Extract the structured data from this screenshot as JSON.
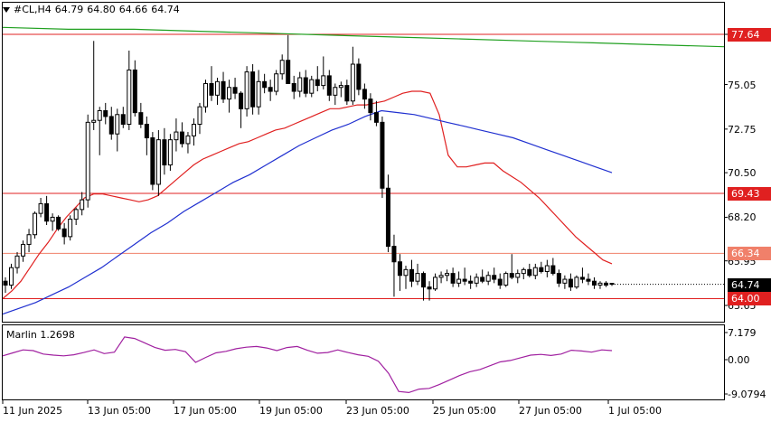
{
  "header": {
    "symbol": "#CL,H4",
    "open": "64.79",
    "high": "64.80",
    "low": "64.66",
    "close": "64.74"
  },
  "indicator": {
    "label": "Marlin 1.2698",
    "levels": [
      "7.179",
      "0.00",
      "-9.0794"
    ],
    "color": "#a020a0"
  },
  "colors": {
    "bull_candle": "#ffffff",
    "bear_candle": "#000000",
    "level_line": "#e02020",
    "ma_red": "#e02020",
    "ma_blue": "#2030d0",
    "ma_green": "#20a020",
    "oscillator": "#a020a0"
  },
  "chart_data": {
    "type": "candlestick",
    "timeframe": "H4",
    "price_axis": {
      "labels": [
        "77.64",
        "75.05",
        "72.75",
        "70.50",
        "68.20",
        "65.95",
        "63.65"
      ],
      "values": [
        77.64,
        75.05,
        72.75,
        70.5,
        68.2,
        65.95,
        63.65
      ]
    },
    "time_axis": [
      "11 Jun 2025",
      "13 Jun 05:00",
      "17 Jun 05:00",
      "19 Jun 05:00",
      "23 Jun 05:00",
      "25 Jun 05:00",
      "27 Jun 05:00",
      "1 Jul 05:00"
    ],
    "levels": [
      {
        "label": "77.64",
        "value": 77.64,
        "color": "#e02020",
        "text_color": "#ffffff"
      },
      {
        "label": "69.43",
        "value": 69.43,
        "color": "#e02020",
        "text_color": "#ffffff"
      },
      {
        "label": "66.34",
        "value": 66.34,
        "color": "#f0806a",
        "text_color": "#ffffff"
      },
      {
        "label": "64.00",
        "value": 64.0,
        "color": "#e02020",
        "text_color": "#ffffff"
      }
    ],
    "current_price": {
      "label": "64.74",
      "value": 64.74
    },
    "candles_ohlc": [
      [
        64.9,
        65.1,
        64.3,
        64.7
      ],
      [
        64.7,
        65.8,
        64.5,
        65.6
      ],
      [
        65.6,
        66.4,
        65.3,
        66.2
      ],
      [
        66.2,
        67.0,
        65.9,
        66.8
      ],
      [
        66.8,
        67.6,
        66.4,
        67.3
      ],
      [
        67.3,
        68.5,
        67.1,
        68.4
      ],
      [
        68.4,
        69.2,
        68.2,
        68.9
      ],
      [
        68.9,
        69.3,
        67.8,
        68.0
      ],
      [
        68.0,
        68.4,
        67.5,
        68.2
      ],
      [
        68.2,
        68.3,
        67.5,
        67.6
      ],
      [
        67.6,
        67.9,
        66.8,
        67.2
      ],
      [
        67.2,
        68.3,
        67.0,
        68.1
      ],
      [
        68.1,
        68.7,
        67.8,
        68.6
      ],
      [
        68.6,
        69.5,
        68.3,
        69.1
      ],
      [
        69.1,
        73.5,
        68.7,
        73.1
      ],
      [
        73.1,
        77.3,
        72.7,
        73.2
      ],
      [
        73.2,
        73.9,
        71.4,
        73.7
      ],
      [
        73.7,
        74.1,
        73.0,
        73.4
      ],
      [
        73.4,
        73.9,
        72.2,
        72.5
      ],
      [
        72.5,
        73.8,
        71.6,
        73.5
      ],
      [
        73.5,
        73.9,
        72.8,
        73.0
      ],
      [
        73.0,
        76.8,
        72.7,
        75.8
      ],
      [
        75.8,
        76.3,
        73.4,
        73.6
      ],
      [
        73.6,
        74.1,
        72.8,
        73.0
      ],
      [
        73.0,
        73.4,
        71.4,
        72.3
      ],
      [
        72.3,
        72.6,
        69.6,
        69.9
      ],
      [
        69.9,
        72.7,
        69.3,
        72.2
      ],
      [
        72.2,
        72.8,
        70.4,
        70.9
      ],
      [
        70.9,
        72.5,
        70.6,
        72.2
      ],
      [
        72.2,
        73.3,
        71.6,
        72.6
      ],
      [
        72.6,
        73.1,
        71.8,
        72.0
      ],
      [
        72.0,
        72.6,
        71.5,
        72.4
      ],
      [
        72.4,
        73.3,
        71.9,
        73.0
      ],
      [
        73.0,
        74.1,
        72.5,
        73.9
      ],
      [
        73.9,
        75.3,
        73.6,
        75.1
      ],
      [
        75.1,
        76.0,
        74.2,
        74.5
      ],
      [
        74.5,
        75.4,
        74.0,
        75.2
      ],
      [
        75.2,
        75.7,
        74.1,
        74.3
      ],
      [
        74.3,
        75.3,
        73.6,
        74.9
      ],
      [
        74.9,
        75.4,
        74.3,
        74.6
      ],
      [
        74.6,
        74.7,
        72.8,
        73.8
      ],
      [
        73.8,
        76.0,
        73.4,
        75.7
      ],
      [
        75.7,
        76.1,
        73.5,
        73.9
      ],
      [
        73.9,
        75.8,
        73.5,
        75.2
      ],
      [
        75.2,
        75.6,
        74.6,
        74.9
      ],
      [
        74.9,
        75.3,
        74.2,
        74.7
      ],
      [
        74.7,
        75.8,
        74.5,
        75.6
      ],
      [
        75.6,
        76.6,
        75.3,
        76.3
      ],
      [
        76.3,
        77.6,
        75.8,
        75.1
      ],
      [
        75.1,
        75.5,
        74.3,
        74.7
      ],
      [
        74.7,
        75.7,
        74.4,
        75.4
      ],
      [
        75.4,
        75.8,
        74.4,
        74.6
      ],
      [
        74.6,
        75.5,
        74.4,
        75.3
      ],
      [
        75.3,
        76.0,
        74.7,
        75.0
      ],
      [
        75.0,
        76.5,
        74.8,
        75.5
      ],
      [
        75.5,
        75.8,
        74.2,
        74.5
      ],
      [
        74.5,
        75.1,
        74.0,
        74.9
      ],
      [
        74.9,
        75.2,
        74.4,
        75.0
      ],
      [
        75.0,
        75.3,
        74.0,
        74.2
      ],
      [
        74.2,
        77.0,
        74.0,
        76.1
      ],
      [
        76.1,
        76.4,
        74.5,
        74.8
      ],
      [
        74.8,
        75.1,
        73.8,
        74.3
      ],
      [
        74.3,
        74.6,
        73.2,
        73.6
      ],
      [
        73.6,
        74.2,
        72.9,
        73.1
      ],
      [
        73.1,
        73.4,
        69.2,
        69.7
      ],
      [
        69.7,
        70.4,
        66.4,
        66.7
      ],
      [
        66.7,
        67.3,
        64.1,
        65.9
      ],
      [
        65.9,
        66.3,
        64.4,
        65.2
      ],
      [
        65.2,
        65.7,
        64.5,
        65.5
      ],
      [
        65.5,
        66.0,
        64.6,
        64.9
      ],
      [
        64.9,
        65.8,
        64.7,
        65.3
      ],
      [
        65.3,
        65.4,
        63.9,
        64.6
      ],
      [
        64.6,
        64.9,
        63.9,
        64.5
      ],
      [
        64.5,
        65.3,
        64.4,
        65.1
      ],
      [
        65.1,
        65.4,
        64.8,
        65.2
      ],
      [
        65.2,
        65.5,
        64.9,
        65.3
      ],
      [
        65.3,
        65.6,
        64.6,
        64.8
      ],
      [
        64.8,
        65.4,
        64.6,
        65.0
      ],
      [
        65.0,
        65.6,
        64.7,
        64.9
      ],
      [
        64.9,
        65.2,
        64.5,
        64.8
      ],
      [
        64.8,
        65.3,
        64.6,
        65.1
      ],
      [
        65.1,
        65.5,
        64.8,
        64.9
      ],
      [
        64.9,
        65.4,
        64.7,
        65.2
      ],
      [
        65.2,
        65.6,
        64.8,
        65.0
      ],
      [
        65.0,
        65.3,
        64.5,
        64.7
      ],
      [
        64.7,
        65.4,
        64.6,
        65.3
      ],
      [
        65.3,
        66.3,
        65.0,
        65.1
      ],
      [
        65.1,
        65.5,
        64.8,
        65.3
      ],
      [
        65.3,
        65.6,
        65.0,
        65.5
      ],
      [
        65.5,
        65.8,
        65.1,
        65.2
      ],
      [
        65.2,
        65.8,
        65.0,
        65.6
      ],
      [
        65.6,
        65.9,
        65.3,
        65.4
      ],
      [
        65.4,
        66.0,
        65.1,
        65.7
      ],
      [
        65.7,
        66.1,
        65.2,
        65.3
      ],
      [
        65.3,
        65.5,
        64.6,
        64.8
      ],
      [
        64.8,
        65.2,
        64.5,
        65.0
      ],
      [
        65.0,
        65.3,
        64.4,
        64.6
      ],
      [
        64.6,
        65.2,
        64.5,
        65.1
      ],
      [
        65.1,
        65.6,
        64.8,
        65.0
      ],
      [
        65.0,
        65.3,
        64.7,
        64.9
      ],
      [
        64.9,
        65.1,
        64.5,
        64.7
      ],
      [
        64.7,
        64.9,
        64.5,
        64.8
      ],
      [
        64.8,
        64.9,
        64.6,
        64.7
      ],
      [
        64.79,
        64.8,
        64.66,
        64.74
      ]
    ],
    "series": [
      {
        "name": "ma_red",
        "values": [
          64.0,
          64.4,
          64.9,
          65.6,
          66.3,
          66.9,
          67.6,
          68.2,
          68.7,
          69.2,
          69.4,
          69.4,
          69.3,
          69.2,
          69.1,
          69.0,
          69.1,
          69.3,
          69.7,
          70.1,
          70.5,
          70.9,
          71.2,
          71.4,
          71.6,
          71.8,
          72.0,
          72.1,
          72.3,
          72.5,
          72.7,
          72.8,
          73.0,
          73.2,
          73.4,
          73.6,
          73.8,
          73.8,
          73.9,
          74.0,
          74.0,
          74.1,
          74.2,
          74.4,
          74.6,
          74.7,
          74.7,
          74.6,
          73.5,
          71.4,
          70.8,
          70.8,
          70.9,
          71.0,
          71.0,
          70.6,
          70.3,
          70.0,
          69.6,
          69.2,
          68.7,
          68.2,
          67.7,
          67.2,
          66.8,
          66.4,
          66.0,
          65.8
        ]
      },
      {
        "name": "ma_blue",
        "values": [
          63.2,
          63.5,
          63.8,
          64.2,
          64.6,
          65.1,
          65.6,
          66.2,
          66.8,
          67.4,
          67.9,
          68.5,
          69.0,
          69.5,
          70.0,
          70.4,
          70.9,
          71.4,
          71.9,
          72.3,
          72.7,
          73.0,
          73.4,
          73.7,
          73.6,
          73.5,
          73.3,
          73.1,
          72.9,
          72.7,
          72.5,
          72.3,
          72.0,
          71.7,
          71.4,
          71.1,
          70.8,
          70.5
        ]
      },
      {
        "name": "ma_green",
        "values": [
          78.0,
          77.9,
          77.9,
          77.8,
          77.7,
          77.6,
          77.5,
          77.4,
          77.3,
          77.2,
          77.1,
          77.0
        ]
      }
    ],
    "oscillator_values": [
      1.0,
      1.8,
      2.6,
      2.4,
      1.5,
      1.2,
      1.0,
      1.3,
      1.9,
      2.6,
      1.6,
      2.0,
      6.0,
      5.6,
      4.4,
      3.2,
      2.5,
      2.7,
      2.1,
      -0.7,
      0.6,
      1.8,
      2.2,
      2.9,
      3.3,
      3.5,
      3.1,
      2.4,
      3.2,
      3.5,
      2.5,
      1.7,
      1.9,
      2.6,
      1.9,
      1.3,
      0.9,
      -0.4,
      -3.6,
      -8.4,
      -8.7,
      -7.8,
      -7.6,
      -6.6,
      -5.4,
      -4.2,
      -3.2,
      -2.6,
      -1.6,
      -0.6,
      -0.2,
      0.5,
      1.2,
      1.4,
      1.1,
      1.5,
      2.5,
      2.3,
      2.0,
      2.6,
      2.4
    ]
  }
}
